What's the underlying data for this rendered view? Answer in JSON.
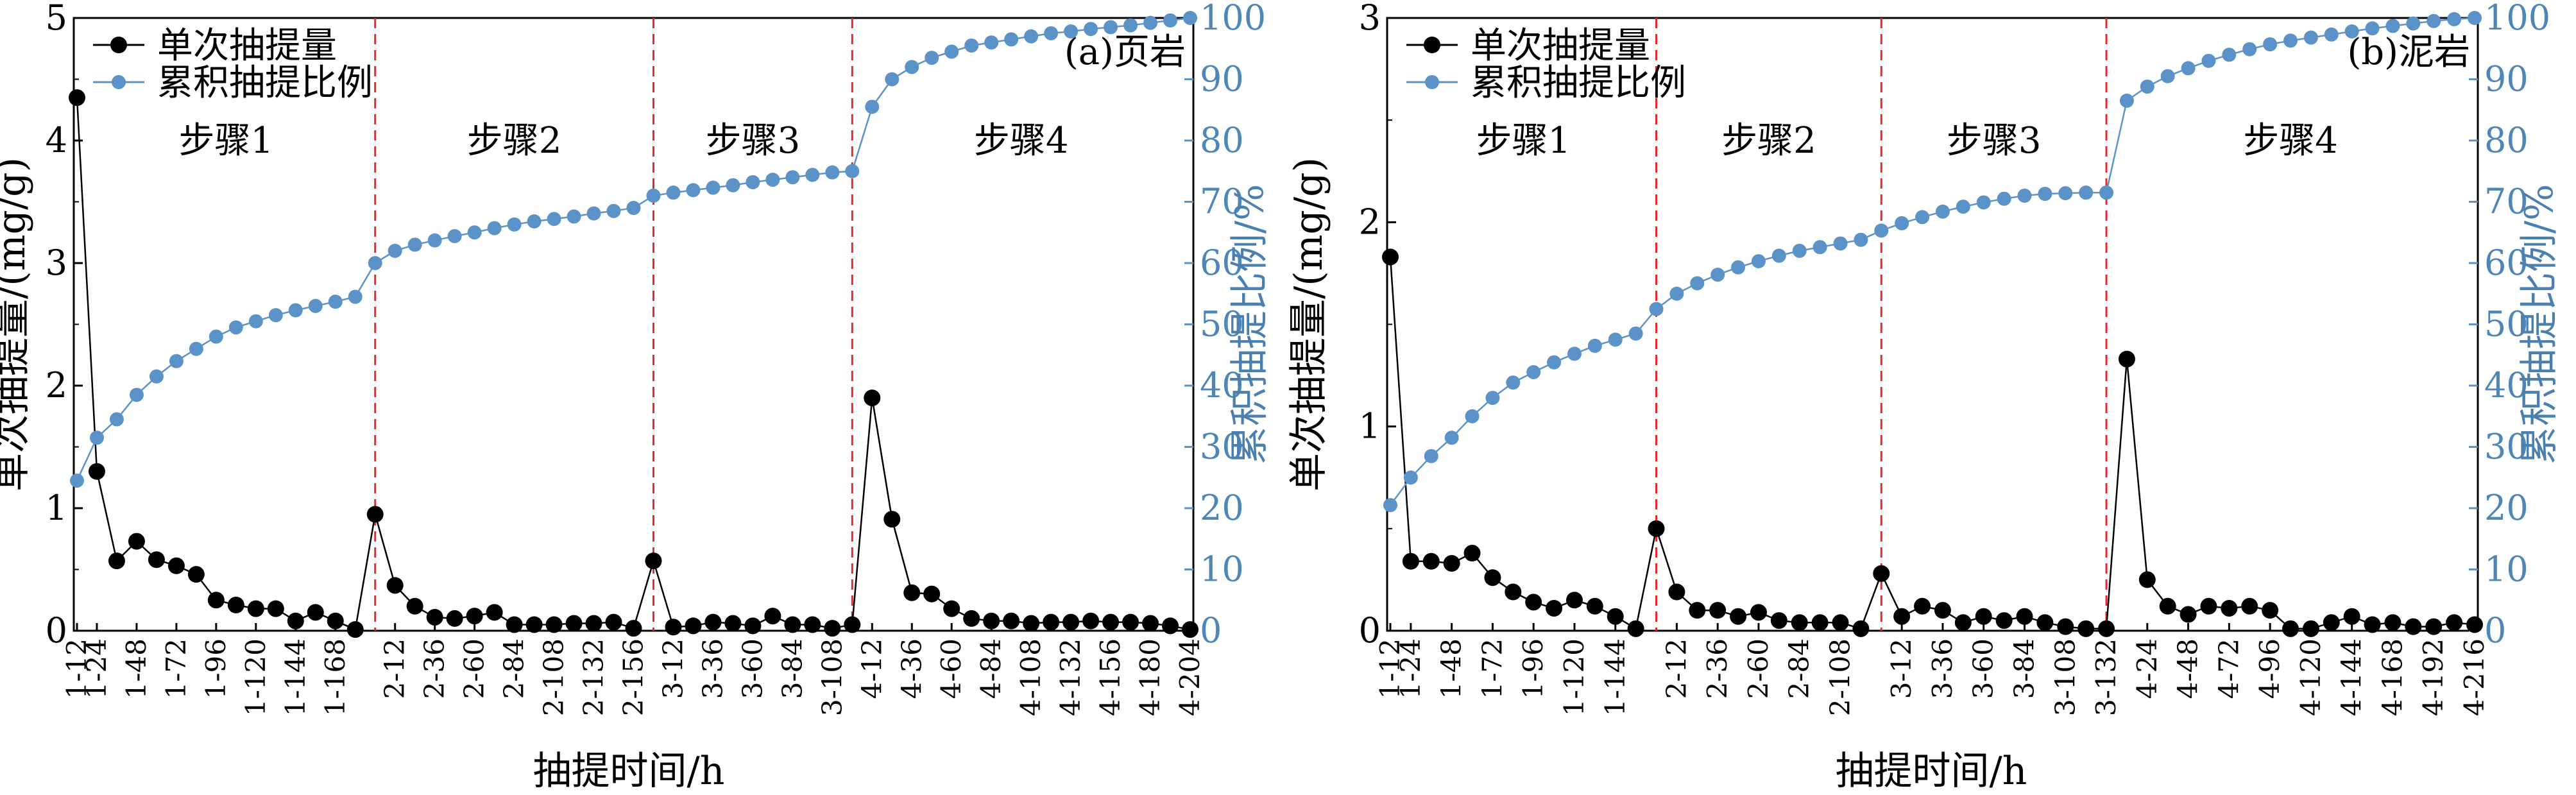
{
  "chart_data": [
    {
      "type": "line",
      "panel_label": "(a)页岩",
      "xlabel": "抽提时间/h",
      "ylabel": "单次抽提量/(mg/g)",
      "y2label": "累积抽提比例/%",
      "ylim": [
        0,
        5
      ],
      "yticks": [
        "0",
        "1",
        "2",
        "3",
        "4",
        "5"
      ],
      "y2lim": [
        0,
        100
      ],
      "y2ticks": [
        "0",
        "10",
        "20",
        "30",
        "40",
        "50",
        "60",
        "70",
        "80",
        "90",
        "100"
      ],
      "legend": [
        "单次抽提量",
        "累积抽提比例"
      ],
      "legend_position": "top-left",
      "steps": [
        "步骤1",
        "步骤2",
        "步骤3",
        "步骤4"
      ],
      "step_boundaries": [
        15,
        29,
        39
      ],
      "x_tick_labels": [
        "1-12",
        "1-24",
        "1-48",
        "1-72",
        "1-96",
        "1-120",
        "1-144",
        "1-168",
        "2-12",
        "2-36",
        "2-60",
        "2-84",
        "2-108",
        "2-132",
        "2-156",
        "3-12",
        "3-36",
        "3-60",
        "3-84",
        "3-108",
        "4-12",
        "4-36",
        "4-60",
        "4-84",
        "4-108",
        "4-132",
        "4-156",
        "4-180",
        "4-204"
      ],
      "x_tick_positions": [
        0,
        1,
        3,
        5,
        7,
        9,
        11,
        13,
        16,
        18,
        20,
        22,
        24,
        26,
        28,
        30,
        32,
        34,
        36,
        38,
        40,
        42,
        44,
        46,
        48,
        50,
        52,
        54,
        56
      ],
      "n_points": 57,
      "series": [
        {
          "name": "单次抽提量",
          "color": "#000000",
          "axis": "left",
          "values": [
            4.35,
            1.3,
            0.57,
            0.73,
            0.58,
            0.53,
            0.46,
            0.25,
            0.21,
            0.18,
            0.18,
            0.08,
            0.15,
            0.08,
            0.01,
            0.95,
            0.37,
            0.2,
            0.11,
            0.1,
            0.12,
            0.15,
            0.05,
            0.05,
            0.05,
            0.06,
            0.06,
            0.07,
            0.02,
            0.57,
            0.03,
            0.04,
            0.07,
            0.06,
            0.04,
            0.12,
            0.05,
            0.05,
            0.02,
            0.05,
            1.9,
            0.91,
            0.31,
            0.3,
            0.18,
            0.1,
            0.08,
            0.08,
            0.06,
            0.07,
            0.07,
            0.08,
            0.07,
            0.07,
            0.06,
            0.04,
            0.01
          ]
        },
        {
          "name": "累积抽提比例",
          "color": "#5b93c8",
          "axis": "right",
          "values": [
            24.5,
            31.5,
            34.5,
            38.5,
            41.5,
            44,
            46,
            48,
            49.5,
            50.5,
            51.5,
            52.3,
            53,
            53.7,
            54.5,
            60,
            62,
            63,
            63.7,
            64.4,
            65,
            65.7,
            66.3,
            66.8,
            67.2,
            67.6,
            68.1,
            68.5,
            69,
            71,
            71.5,
            71.9,
            72.3,
            72.7,
            73.2,
            73.6,
            74,
            74.4,
            74.8,
            75,
            85.5,
            90,
            92,
            93.5,
            94.5,
            95.5,
            96,
            96.5,
            97,
            97.5,
            97.8,
            98.2,
            98.5,
            98.8,
            99.2,
            99.6,
            100
          ]
        }
      ]
    },
    {
      "type": "line",
      "panel_label": "(b)泥岩",
      "xlabel": "抽提时间/h",
      "ylabel": "单次抽提量/(mg/g)",
      "y2label": "累积抽提比例/%",
      "ylim": [
        0,
        3
      ],
      "yticks": [
        "0",
        "1",
        "2",
        "3"
      ],
      "y2lim": [
        0,
        100
      ],
      "y2ticks": [
        "0",
        "10",
        "20",
        "30",
        "40",
        "50",
        "60",
        "70",
        "80",
        "90",
        "100"
      ],
      "legend": [
        "单次抽提量",
        "累积抽提比例"
      ],
      "legend_position": "top-left",
      "steps": [
        "步骤1",
        "步骤2",
        "步骤3",
        "步骤4"
      ],
      "step_boundaries": [
        13,
        24,
        35
      ],
      "x_tick_labels": [
        "1-12",
        "1-24",
        "1-48",
        "1-72",
        "1-96",
        "1-120",
        "1-144",
        "2-12",
        "2-36",
        "2-60",
        "2-84",
        "2-108",
        "3-12",
        "3-36",
        "3-60",
        "3-84",
        "3-108",
        "3-132",
        "4-24",
        "4-48",
        "4-72",
        "4-96",
        "4-120",
        "4-144",
        "4-168",
        "4-192",
        "4-216"
      ],
      "x_tick_positions": [
        0,
        1,
        3,
        5,
        7,
        9,
        11,
        14,
        16,
        18,
        20,
        22,
        25,
        27,
        29,
        31,
        33,
        35,
        37,
        39,
        41,
        43,
        45,
        47,
        49,
        51,
        53
      ],
      "n_points": 54,
      "series": [
        {
          "name": "单次抽提量",
          "color": "#000000",
          "axis": "left",
          "values": [
            1.83,
            0.34,
            0.34,
            0.33,
            0.38,
            0.26,
            0.19,
            0.14,
            0.11,
            0.15,
            0.12,
            0.07,
            0.01,
            0.5,
            0.19,
            0.1,
            0.1,
            0.07,
            0.09,
            0.05,
            0.04,
            0.04,
            0.04,
            0.01,
            0.28,
            0.07,
            0.12,
            0.1,
            0.04,
            0.07,
            0.05,
            0.07,
            0.04,
            0.02,
            0.01,
            0.01,
            1.33,
            0.25,
            0.12,
            0.08,
            0.12,
            0.11,
            0.12,
            0.1,
            0.01,
            0.01,
            0.04,
            0.07,
            0.03,
            0.04,
            0.02,
            0.02,
            0.04,
            0.03
          ]
        },
        {
          "name": "累积抽提比例",
          "color": "#5b93c8",
          "axis": "right",
          "values": [
            20.5,
            25,
            28.5,
            31.5,
            35,
            38,
            40.5,
            42.2,
            43.8,
            45.2,
            46.5,
            47.5,
            48.5,
            52.5,
            55,
            56.7,
            58.1,
            59.3,
            60.3,
            61.2,
            62,
            62.6,
            63.2,
            63.8,
            65.3,
            66.5,
            67.5,
            68.4,
            69.2,
            69.9,
            70.5,
            71,
            71.3,
            71.4,
            71.5,
            71.5,
            86.5,
            88.8,
            90.5,
            91.8,
            93,
            94,
            94.9,
            95.7,
            96.3,
            96.8,
            97.3,
            97.8,
            98.3,
            98.7,
            99.1,
            99.5,
            99.8,
            100
          ]
        }
      ]
    }
  ]
}
